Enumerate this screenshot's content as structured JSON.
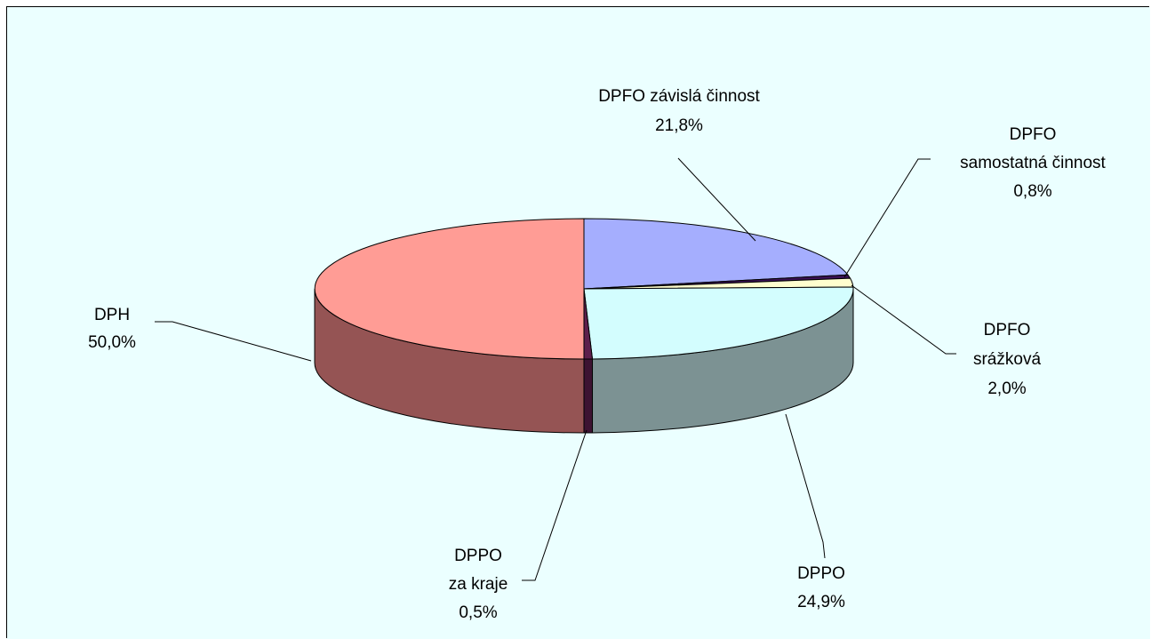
{
  "chart_data": {
    "type": "pie",
    "style": "3d",
    "background": "#ebffff",
    "slices": [
      {
        "name": "DPFO závislá činnost",
        "value": 21.8,
        "value_label": "21,8%",
        "color": "#a5aefe",
        "side_color": "#5c6298"
      },
      {
        "name": "DPFO samostatná činnost",
        "value": 0.8,
        "value_label": "0,8%",
        "color": "#3b1255",
        "side_color": "#26093a"
      },
      {
        "name": "DPFO srážková",
        "value": 2.0,
        "value_label": "2,0%",
        "color": "#fffece",
        "side_color": "#b0a978"
      },
      {
        "name": "DPPO",
        "value": 24.9,
        "value_label": "24,9%",
        "color": "#d3fdfe",
        "side_color": "#7c9293"
      },
      {
        "name": "DPPO za kraje",
        "value": 0.5,
        "value_label": "0,5%",
        "color": "#5d1f4c",
        "side_color": "#3d1332"
      },
      {
        "name": "DPH",
        "value": 50.0,
        "value_label": "50,0%",
        "color": "#ff9c95",
        "side_color": "#955454"
      }
    ],
    "labels": [
      {
        "slice": 0,
        "lines": [
          "DPFO závislá činnost",
          "21,8%"
        ]
      },
      {
        "slice": 1,
        "lines": [
          "DPFO",
          "samostatná činnost",
          "0,8%"
        ]
      },
      {
        "slice": 2,
        "lines": [
          "DPFO",
          "srážková",
          "2,0%"
        ]
      },
      {
        "slice": 3,
        "lines": [
          "DPPO",
          "24,9%"
        ]
      },
      {
        "slice": 4,
        "lines": [
          "DPPO",
          "za kraje",
          "0,5%"
        ]
      },
      {
        "slice": 5,
        "lines": [
          "DPH",
          "50,0%"
        ]
      }
    ]
  }
}
